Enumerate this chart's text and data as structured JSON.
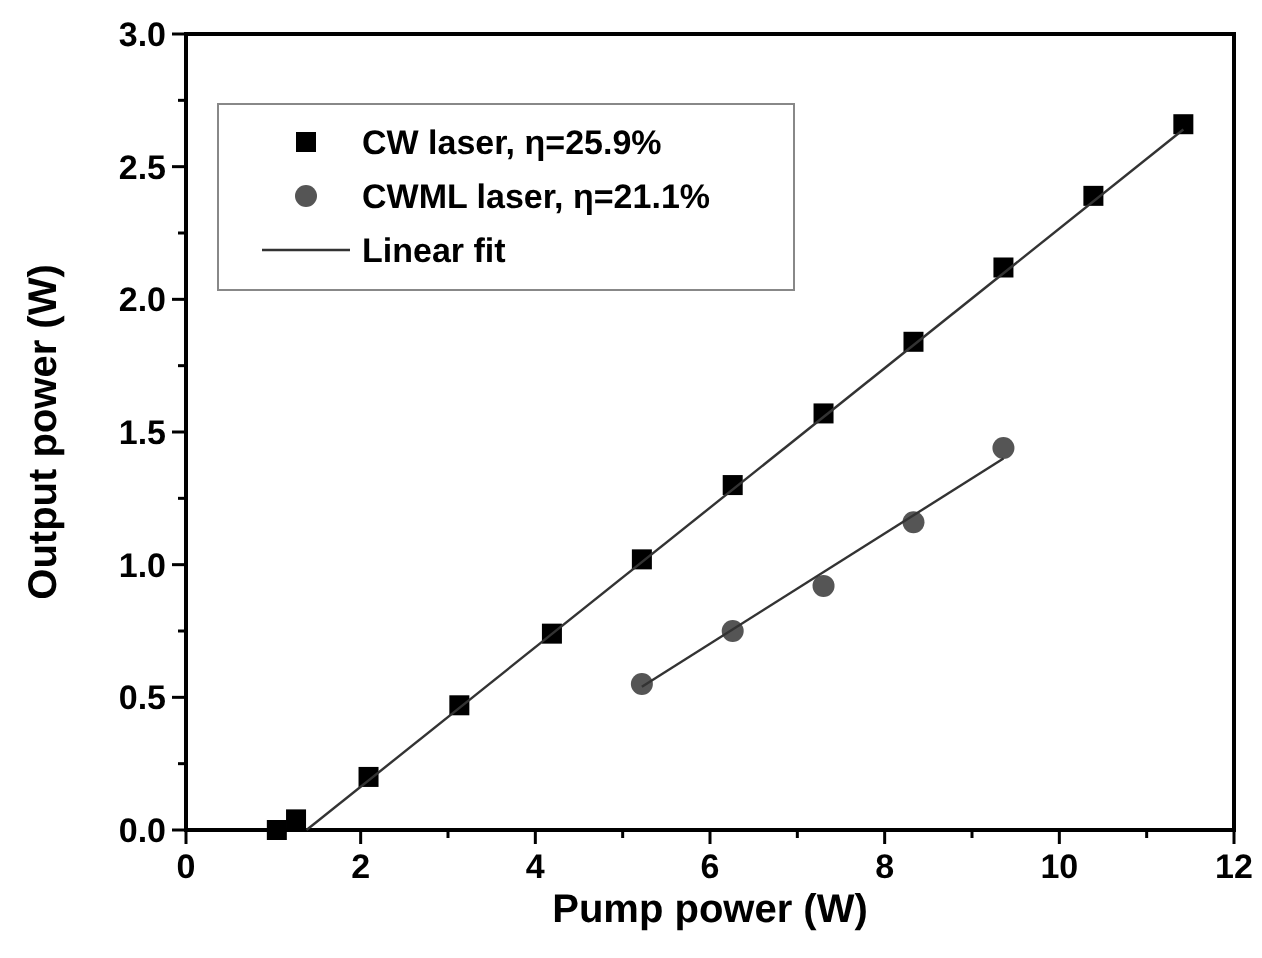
{
  "chart_data": {
    "type": "scatter",
    "xlabel": "Pump power (W)",
    "ylabel": "Output power (W)",
    "xlim": [
      0,
      12
    ],
    "ylim": [
      0,
      3.0
    ],
    "xticks": [
      0,
      {
        "value": 1,
        "label": null
      },
      2,
      {
        "value": 3,
        "label": null
      },
      4,
      {
        "value": 5,
        "label": null
      },
      6,
      {
        "value": 7,
        "label": null
      },
      8,
      {
        "value": 9,
        "label": null
      },
      10,
      {
        "value": 11,
        "label": null
      },
      12
    ],
    "yticks": [
      {
        "value": 0,
        "label": "0.0"
      },
      {
        "value": 0.25,
        "label": null
      },
      0.5,
      {
        "value": 0.75,
        "label": null
      },
      {
        "value": 1,
        "label": "1.0"
      },
      {
        "value": 1.25,
        "label": null
      },
      1.5,
      {
        "value": 1.75,
        "label": null
      },
      {
        "value": 2,
        "label": "2.0"
      },
      {
        "value": 2.25,
        "label": null
      },
      2.5,
      {
        "value": 2.75,
        "label": null
      },
      {
        "value": 3,
        "label": "3.0"
      }
    ],
    "grid": false,
    "legend": "top left",
    "series": [
      {
        "name": "CW laser, η=25.9%",
        "marker": "square",
        "color": "#000000",
        "x": [
          1.04,
          1.26,
          2.09,
          3.13,
          4.19,
          5.22,
          6.26,
          7.3,
          8.33,
          9.36,
          10.39,
          11.42
        ],
        "values": [
          0,
          0.04,
          0.2,
          0.47,
          0.74,
          1.02,
          1.3,
          1.57,
          1.84,
          2.12,
          2.39,
          2.66
        ]
      },
      {
        "name": "CWML laser, η=21.1%",
        "marker": "circle",
        "color": "#555555",
        "x": [
          5.22,
          6.26,
          7.3,
          8.33,
          9.36
        ],
        "values": [
          0.55,
          0.75,
          0.92,
          1.16,
          1.44
        ]
      },
      {
        "name": "Linear fit",
        "type": "line",
        "marker": "none",
        "line_style": "solid",
        "color": "#333333",
        "x": [
          1.38,
          11.42
        ],
        "values": [
          0,
          2.64
        ]
      },
      {
        "type": "line",
        "marker": "none",
        "line_style": "solid",
        "color": "#333333",
        "x": [
          5.22,
          9.36
        ],
        "values": [
          0.54,
          1.4
        ]
      }
    ]
  }
}
